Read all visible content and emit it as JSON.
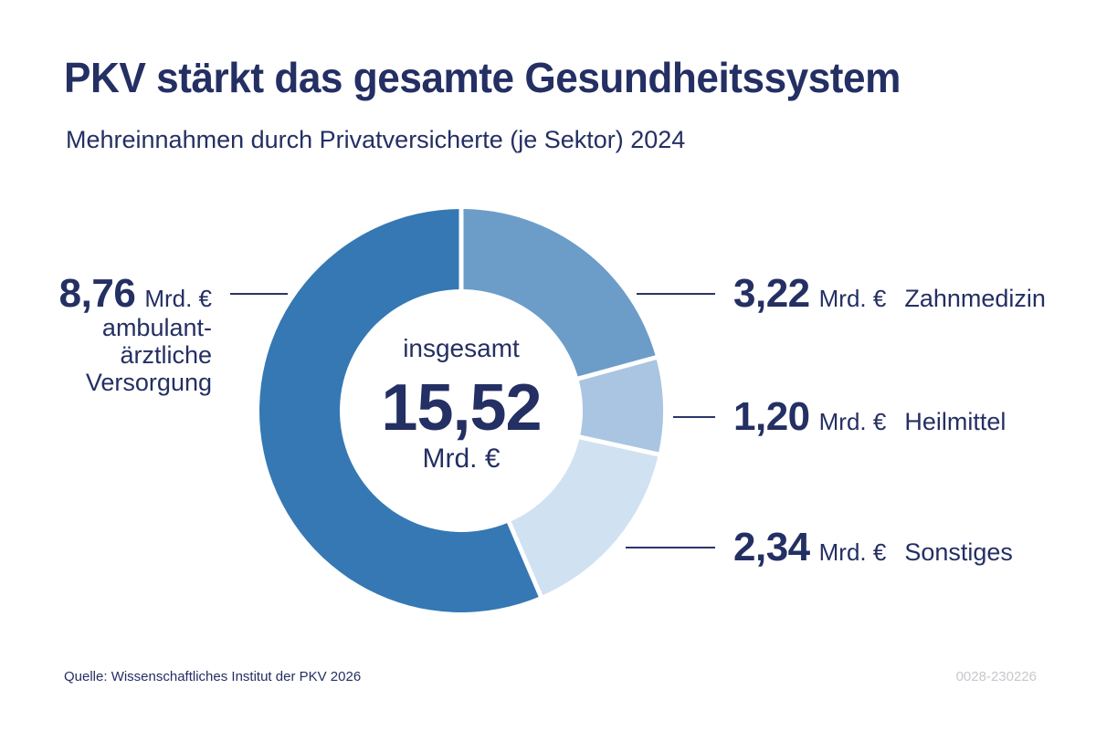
{
  "header": {
    "title": "PKV stärkt das gesamte Gesundheitssystem",
    "subtitle": "Mehreinnahmen durch Privatversicherte (je Sektor) 2024"
  },
  "chart_data": {
    "type": "pie",
    "donut": true,
    "title": "Mehreinnahmen durch Privatversicherte (je Sektor) 2024",
    "start_angle_deg": 0,
    "clockwise": true,
    "unit": "Mrd. €",
    "total": 15.52,
    "center": {
      "label": "insgesamt",
      "value": "15,52",
      "unit": "Mrd. €"
    },
    "segments": [
      {
        "id": "zahnmedizin",
        "label": "Zahnmedizin",
        "value": 3.22,
        "display": "3,22",
        "color": "#6c9dc9"
      },
      {
        "id": "heilmittel",
        "label": "Heilmittel",
        "value": 1.2,
        "display": "1,20",
        "color": "#aac5e1"
      },
      {
        "id": "sonstiges",
        "label": "Sonstiges",
        "value": 2.34,
        "display": "2,34",
        "color": "#d0e1f2"
      },
      {
        "id": "ambulant",
        "label": "ambulant-ärztliche Versorgung",
        "value": 8.76,
        "display": "8,76",
        "color": "#3578b3",
        "label_lines": [
          "ambulant-",
          "ärztliche",
          "Versorgung"
        ]
      }
    ]
  },
  "colors": {
    "navy": "#242f63",
    "leader_line": "#2a356b",
    "code_gray": "#c7c8cd",
    "separator": "#ffffff"
  },
  "footer": {
    "source": "Quelle: Wissenschaftliches Institut der PKV 2026",
    "code": "0028-230226"
  }
}
